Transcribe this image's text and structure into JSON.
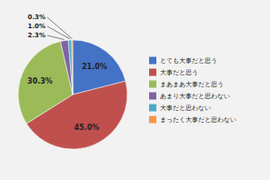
{
  "chart_data": {
    "type": "pie",
    "categories": [
      "とても大事だと思う",
      "大事だと思う",
      "まあまあ大事だと思う",
      "あまり大事だと思わない",
      "大事だと思わない",
      "まったく大事だと思わない"
    ],
    "values": [
      21.0,
      45.0,
      30.3,
      2.3,
      1.0,
      0.3
    ],
    "value_labels": [
      "21.0%",
      "45.0%",
      "30.3%",
      "2.3%",
      "1.0%",
      "0.3%"
    ],
    "colors": [
      "#4472c4",
      "#c0504d",
      "#9bbb59",
      "#8064a2",
      "#4bacc6",
      "#f79646"
    ],
    "data_labels": true,
    "legend": "right"
  }
}
